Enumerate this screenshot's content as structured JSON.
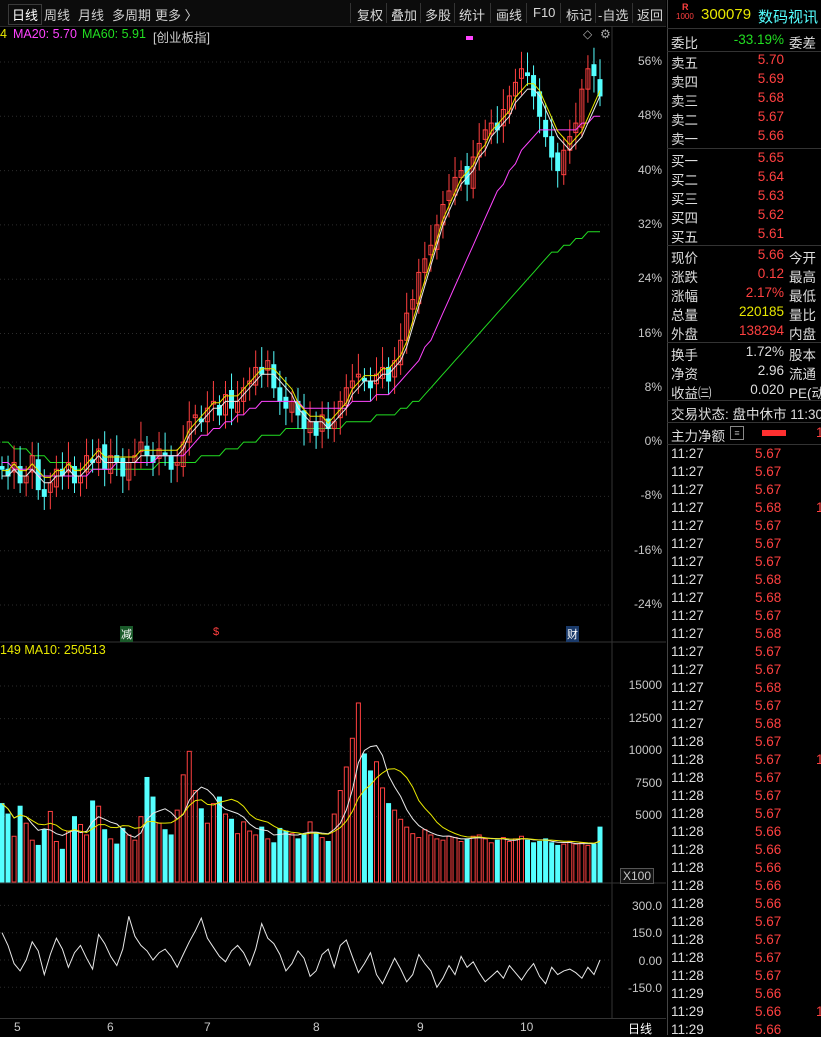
{
  "toolbar": {
    "period_tabs": [
      "日线",
      "周线",
      "月线",
      "多周期",
      "更多 〉"
    ],
    "buttons": [
      "复权",
      "叠加",
      "多股",
      "统计",
      "画线",
      "F10",
      "标记",
      "-自选",
      "返回"
    ]
  },
  "price_panel": {
    "ma_items": [
      {
        "text": "4",
        "color": "#e8e800"
      },
      {
        "text": "MA20: 5.70",
        "color": "#ff44ff"
      },
      {
        "text": "MA60: 5.91",
        "color": "#22dd22"
      }
    ],
    "index_tag": "[创业板指]",
    "y_ticks": [
      "56%",
      "48%",
      "40%",
      "32%",
      "24%",
      "16%",
      "8%",
      "0%",
      "-8%",
      "-16%",
      "-24%"
    ],
    "event_tags": [
      "减",
      "$",
      "财"
    ]
  },
  "volume_panel": {
    "legend": "149 MA10: 250513",
    "y_ticks": [
      "15000",
      "12500",
      "10000",
      "7500",
      "5000"
    ],
    "unit": "X100"
  },
  "indicator_panel": {
    "y_ticks": [
      "300.0",
      "150.0",
      "0.00",
      "-150.0"
    ]
  },
  "x_axis": {
    "labels": [
      "5",
      "6",
      "7",
      "8",
      "9",
      "10"
    ],
    "period_label": "日线"
  },
  "quote": {
    "logo_top": "R",
    "logo_bottom": "1000",
    "code": "300079",
    "name": "数码视讯",
    "weibi_label": "委比",
    "weibi_value": "-33.19%",
    "weicha_label": "委差",
    "asks": [
      {
        "label": "卖五",
        "price": "5.70"
      },
      {
        "label": "卖四",
        "price": "5.69"
      },
      {
        "label": "卖三",
        "price": "5.68"
      },
      {
        "label": "卖二",
        "price": "5.67"
      },
      {
        "label": "卖一",
        "price": "5.66"
      }
    ],
    "bids": [
      {
        "label": "买一",
        "price": "5.65"
      },
      {
        "label": "买二",
        "price": "5.64"
      },
      {
        "label": "买三",
        "price": "5.63"
      },
      {
        "label": "买四",
        "price": "5.62"
      },
      {
        "label": "买五",
        "price": "5.61"
      }
    ],
    "stats": [
      {
        "label": "现价",
        "value": "5.66",
        "tail": "今开",
        "color": "#ff4040"
      },
      {
        "label": "涨跌",
        "value": "0.12",
        "tail": "最高",
        "color": "#ff4040"
      },
      {
        "label": "涨幅",
        "value": "2.17%",
        "tail": "最低",
        "color": "#ff4040"
      },
      {
        "label": "总量",
        "value": "220185",
        "tail": "量比",
        "color": "#e8e800"
      },
      {
        "label": "外盘",
        "value": "138294",
        "tail": "内盘",
        "color": "#ff4040"
      }
    ],
    "stats2": [
      {
        "label": "换手",
        "value": "1.72%",
        "tail": "股本"
      },
      {
        "label": "净资",
        "value": "2.96",
        "tail": "流通"
      },
      {
        "label": "收益㈢",
        "value": "0.020",
        "tail": "PE(动"
      }
    ],
    "trade_status": "交易状态: 盘中休市 11:30",
    "main_flow_label": "主力净额",
    "ticks": [
      {
        "time": "11:27",
        "price": "5.67",
        "extra": ""
      },
      {
        "time": "11:27",
        "price": "5.67",
        "extra": ""
      },
      {
        "time": "11:27",
        "price": "5.67",
        "extra": ""
      },
      {
        "time": "11:27",
        "price": "5.68",
        "extra": "1"
      },
      {
        "time": "11:27",
        "price": "5.67",
        "extra": ""
      },
      {
        "time": "11:27",
        "price": "5.67",
        "extra": ""
      },
      {
        "time": "11:27",
        "price": "5.67",
        "extra": ""
      },
      {
        "time": "11:27",
        "price": "5.68",
        "extra": ""
      },
      {
        "time": "11:27",
        "price": "5.68",
        "extra": ""
      },
      {
        "time": "11:27",
        "price": "5.67",
        "extra": ""
      },
      {
        "time": "11:27",
        "price": "5.68",
        "extra": ""
      },
      {
        "time": "11:27",
        "price": "5.67",
        "extra": ""
      },
      {
        "time": "11:27",
        "price": "5.67",
        "extra": ""
      },
      {
        "time": "11:27",
        "price": "5.68",
        "extra": ""
      },
      {
        "time": "11:27",
        "price": "5.67",
        "extra": ""
      },
      {
        "time": "11:27",
        "price": "5.68",
        "extra": ""
      },
      {
        "time": "11:28",
        "price": "5.67",
        "extra": ""
      },
      {
        "time": "11:28",
        "price": "5.67",
        "extra": "1"
      },
      {
        "time": "11:28",
        "price": "5.67",
        "extra": ""
      },
      {
        "time": "11:28",
        "price": "5.67",
        "extra": ""
      },
      {
        "time": "11:28",
        "price": "5.67",
        "extra": ""
      },
      {
        "time": "11:28",
        "price": "5.66",
        "extra": ""
      },
      {
        "time": "11:28",
        "price": "5.66",
        "extra": ""
      },
      {
        "time": "11:28",
        "price": "5.66",
        "extra": ""
      },
      {
        "time": "11:28",
        "price": "5.66",
        "extra": ""
      },
      {
        "time": "11:28",
        "price": "5.66",
        "extra": ""
      },
      {
        "time": "11:28",
        "price": "5.67",
        "extra": ""
      },
      {
        "time": "11:28",
        "price": "5.67",
        "extra": ""
      },
      {
        "time": "11:28",
        "price": "5.67",
        "extra": ""
      },
      {
        "time": "11:28",
        "price": "5.67",
        "extra": ""
      },
      {
        "time": "11:29",
        "price": "5.66",
        "extra": ""
      },
      {
        "time": "11:29",
        "price": "5.66",
        "extra": "1"
      },
      {
        "time": "11:29",
        "price": "5.66",
        "extra": ""
      },
      {
        "time": "11:29",
        "price": "5.66",
        "extra": ""
      }
    ]
  },
  "colors": {
    "up": "#ff4040",
    "down": "#54ffff",
    "ma5": "#e8e8e8",
    "ma10": "#e8e800",
    "ma20": "#ff44ff",
    "ma60": "#22dd22"
  },
  "chart_data": {
    "type": "candlestick",
    "title": "",
    "x_tick_labels": [
      "5",
      "6",
      "7",
      "8",
      "9",
      "10"
    ],
    "y_range_percent": [
      -28,
      58
    ],
    "y_tick_labels": [
      "56%",
      "48%",
      "40%",
      "32%",
      "24%",
      "16%",
      "8%",
      "0%",
      "-8%",
      "-16%",
      "-24%"
    ],
    "close_pct": [
      -4,
      -5,
      -3,
      -6,
      -5,
      -2,
      -7,
      -8,
      -6,
      -4,
      -5,
      -3,
      -6,
      -5,
      -2,
      -3,
      -1,
      -4,
      -2,
      -3,
      -5,
      -3,
      -2,
      0,
      -2,
      -3,
      -1,
      -2,
      -4,
      -3,
      0,
      3,
      4,
      3,
      5,
      6,
      4,
      7,
      5,
      6,
      8,
      9,
      11,
      10,
      12,
      8,
      6,
      5,
      6,
      4,
      2,
      3,
      1,
      4,
      2,
      3,
      6,
      8,
      9,
      10,
      9,
      8,
      10,
      11,
      9,
      12,
      15,
      19,
      21,
      25,
      27,
      29,
      32,
      35,
      37,
      39,
      40,
      38,
      42,
      44,
      46,
      47,
      46,
      49,
      51,
      53,
      55,
      54,
      51,
      48,
      45,
      42,
      40,
      43,
      45,
      47,
      52,
      55,
      54,
      51
    ],
    "ma5_pct": [
      -5,
      -5,
      -4,
      -5,
      -5,
      -4,
      -5,
      -6,
      -6,
      -5,
      -5,
      -4,
      -5,
      -5,
      -4,
      -3,
      -2,
      -3,
      -3,
      -3,
      -3,
      -3,
      -3,
      -2,
      -2,
      -2,
      -2,
      -2,
      -2,
      -2,
      -1,
      1,
      2,
      3,
      4,
      5,
      5,
      6,
      6,
      6,
      7,
      8,
      9,
      10,
      10,
      10,
      9,
      8,
      7,
      5,
      4,
      3,
      3,
      3,
      2,
      3,
      4,
      5,
      7,
      8,
      9,
      9,
      9,
      10,
      10,
      11,
      12,
      14,
      17,
      20,
      23,
      26,
      29,
      32,
      34,
      36,
      38,
      39,
      40,
      42,
      43,
      45,
      46,
      47,
      48,
      50,
      51,
      52,
      52,
      51,
      49,
      47,
      45,
      44,
      43,
      44,
      45,
      47,
      49,
      51
    ],
    "ma20_pct": [
      -3,
      -3,
      -4,
      -4,
      -4,
      -4,
      -5,
      -5,
      -5,
      -5,
      -5,
      -5,
      -5,
      -5,
      -5,
      -4,
      -4,
      -4,
      -4,
      -3,
      -3,
      -3,
      -3,
      -3,
      -3,
      -3,
      -2,
      -2,
      -2,
      -2,
      -2,
      -1,
      0,
      1,
      1,
      2,
      2,
      3,
      3,
      4,
      4,
      5,
      5,
      6,
      6,
      6,
      6,
      6,
      6,
      6,
      5,
      5,
      5,
      5,
      5,
      5,
      5,
      5,
      6,
      6,
      6,
      6,
      7,
      7,
      7,
      8,
      9,
      10,
      11,
      12,
      14,
      15,
      17,
      19,
      21,
      23,
      25,
      27,
      29,
      31,
      33,
      35,
      37,
      38,
      40,
      41,
      43,
      44,
      45,
      46,
      46,
      46,
      46,
      46,
      46,
      46,
      47,
      47,
      48,
      48
    ],
    "ma60_pct": [
      0,
      0,
      -1,
      -1,
      -1,
      -2,
      -2,
      -2,
      -3,
      -3,
      -3,
      -3,
      -4,
      -4,
      -4,
      -4,
      -4,
      -4,
      -4,
      -4,
      -4,
      -4,
      -4,
      -4,
      -4,
      -4,
      -3,
      -3,
      -3,
      -3,
      -3,
      -3,
      -3,
      -2,
      -2,
      -2,
      -2,
      -1,
      -1,
      -1,
      0,
      0,
      0,
      1,
      1,
      1,
      1,
      2,
      2,
      2,
      2,
      2,
      2,
      2,
      2,
      2,
      2,
      3,
      3,
      3,
      3,
      3,
      4,
      4,
      4,
      4,
      5,
      5,
      6,
      6,
      7,
      8,
      9,
      10,
      11,
      12,
      13,
      14,
      15,
      16,
      17,
      18,
      19,
      20,
      21,
      22,
      23,
      24,
      25,
      26,
      27,
      28,
      28,
      29,
      29,
      30,
      30,
      31,
      31,
      31
    ],
    "volume_hundreds": [
      6000,
      5200,
      3500,
      5800,
      4500,
      3200,
      2800,
      4000,
      5400,
      3100,
      2500,
      3900,
      5000,
      4400,
      3600,
      6200,
      5800,
      4000,
      3300,
      2900,
      4100,
      3600,
      3200,
      5000,
      8000,
      6500,
      4500,
      4000,
      3600,
      5500,
      8200,
      10000,
      7000,
      5600,
      4500,
      6000,
      6500,
      5200,
      4800,
      3700,
      4600,
      3900,
      3600,
      4200,
      3300,
      3000,
      4100,
      3900,
      3700,
      3300,
      3600,
      4600,
      3800,
      3400,
      3100,
      5200,
      7000,
      8800,
      11000,
      13700,
      9800,
      8500,
      9200,
      7200,
      6000,
      5500,
      4800,
      4200,
      3700,
      3400,
      4000,
      3600,
      3300,
      3200,
      3500,
      3400,
      3100,
      3300,
      3500,
      3600,
      3300,
      3000,
      3200,
      3400,
      3100,
      3300,
      3500,
      3200,
      3000,
      3100,
      3300,
      3000,
      2800,
      2900,
      3100,
      2900,
      3000,
      2800,
      2900,
      4200
    ],
    "volume_y_ticks": [
      15000,
      12500,
      10000,
      7500,
      5000
    ],
    "indicator_values": [
      150,
      80,
      -20,
      -60,
      0,
      100,
      50,
      -80,
      30,
      120,
      60,
      -40,
      40,
      80,
      10,
      -50,
      140,
      90,
      20,
      -30,
      60,
      240,
      130,
      80,
      50,
      0,
      40,
      60,
      20,
      -40,
      30,
      100,
      160,
      230,
      120,
      70,
      20,
      -10,
      50,
      80,
      40,
      -30,
      60,
      200,
      120,
      90,
      30,
      -60,
      -20,
      50,
      10,
      -90,
      -60,
      30,
      60,
      -40,
      80,
      110,
      20,
      -70,
      -20,
      40,
      -80,
      -130,
      -60,
      10,
      -50,
      -120,
      -80,
      30,
      -20,
      -60,
      -150,
      -100,
      -30,
      -80,
      20,
      -40,
      -10,
      -70,
      -120,
      -90,
      -60,
      -100,
      -30,
      -70,
      -110,
      -60,
      -20,
      -90,
      -130,
      -40,
      -80,
      -60,
      -50,
      -70,
      -100,
      -40,
      -80,
      0
    ],
    "indicator_y_ticks": [
      300,
      150,
      0,
      -150
    ]
  }
}
